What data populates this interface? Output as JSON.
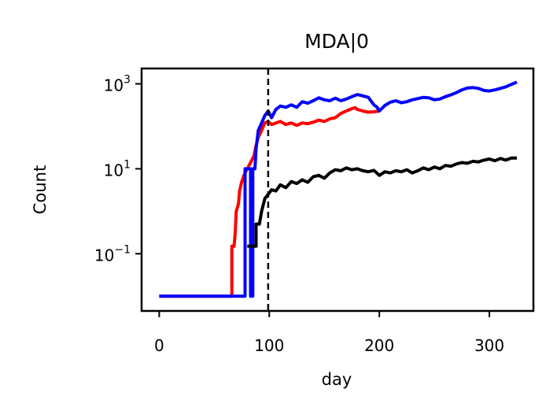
{
  "chart_data": {
    "type": "line",
    "title": "MDA|0",
    "xlabel": "day",
    "ylabel": "Count",
    "xlim": [
      -16,
      340
    ],
    "ylim": [
      0.0045,
      2300
    ],
    "yscale": "log",
    "x_ticks": [
      {
        "value": 0,
        "label": "0"
      },
      {
        "value": 100,
        "label": "100"
      },
      {
        "value": 200,
        "label": "200"
      },
      {
        "value": 300,
        "label": "300"
      }
    ],
    "y_ticks": [
      {
        "value": 0.1,
        "base": "10",
        "exponent": "−1"
      },
      {
        "value": 10,
        "base": "10",
        "exponent": "1"
      },
      {
        "value": 1000,
        "base": "10",
        "exponent": "3"
      }
    ],
    "vline": {
      "x": 99,
      "style": "dashed",
      "color": "#000000"
    },
    "grid": false,
    "series": [
      {
        "color": "#ff0000",
        "points": [
          [
            0,
            0.01
          ],
          [
            66,
            0.01
          ],
          [
            66,
            0.15
          ],
          [
            68,
            0.15
          ],
          [
            69,
            0.3
          ],
          [
            70,
            1.0
          ],
          [
            72,
            1.5
          ],
          [
            73,
            3.0
          ],
          [
            75,
            5.0
          ],
          [
            77,
            7.0
          ],
          [
            80,
            10
          ],
          [
            83,
            14
          ],
          [
            86,
            20
          ],
          [
            88,
            35
          ],
          [
            90,
            55
          ],
          [
            93,
            80
          ],
          [
            96,
            120
          ],
          [
            99,
            130
          ],
          [
            102,
            110
          ],
          [
            106,
            120
          ],
          [
            110,
            130
          ],
          [
            115,
            110
          ],
          [
            120,
            120
          ],
          [
            125,
            105
          ],
          [
            130,
            120
          ],
          [
            135,
            115
          ],
          [
            140,
            125
          ],
          [
            145,
            140
          ],
          [
            150,
            130
          ],
          [
            155,
            150
          ],
          [
            160,
            160
          ],
          [
            165,
            200
          ],
          [
            170,
            230
          ],
          [
            175,
            260
          ],
          [
            178,
            275
          ],
          [
            180,
            250
          ],
          [
            185,
            230
          ],
          [
            190,
            215
          ],
          [
            195,
            220
          ],
          [
            200,
            230
          ]
        ]
      },
      {
        "color": "#0000ff",
        "points": [
          [
            0,
            0.01
          ],
          [
            78,
            0.01
          ],
          [
            78,
            10
          ],
          [
            83,
            10
          ],
          [
            83,
            0.01
          ],
          [
            85,
            0.01
          ],
          [
            85,
            10
          ],
          [
            87,
            10
          ],
          [
            88,
            30
          ],
          [
            90,
            80
          ],
          [
            93,
            120
          ],
          [
            96,
            180
          ],
          [
            99,
            230
          ],
          [
            102,
            160
          ],
          [
            106,
            250
          ],
          [
            110,
            300
          ],
          [
            115,
            280
          ],
          [
            120,
            320
          ],
          [
            125,
            280
          ],
          [
            130,
            380
          ],
          [
            135,
            350
          ],
          [
            140,
            400
          ],
          [
            145,
            470
          ],
          [
            150,
            420
          ],
          [
            155,
            400
          ],
          [
            160,
            460
          ],
          [
            165,
            400
          ],
          [
            170,
            440
          ],
          [
            175,
            500
          ],
          [
            180,
            560
          ],
          [
            185,
            520
          ],
          [
            190,
            480
          ],
          [
            195,
            320
          ],
          [
            198,
            280
          ],
          [
            200,
            230
          ],
          [
            205,
            310
          ],
          [
            210,
            370
          ],
          [
            215,
            400
          ],
          [
            220,
            360
          ],
          [
            225,
            380
          ],
          [
            230,
            420
          ],
          [
            235,
            450
          ],
          [
            240,
            480
          ],
          [
            245,
            470
          ],
          [
            250,
            420
          ],
          [
            255,
            440
          ],
          [
            260,
            500
          ],
          [
            265,
            550
          ],
          [
            270,
            620
          ],
          [
            275,
            720
          ],
          [
            280,
            800
          ],
          [
            285,
            820
          ],
          [
            290,
            780
          ],
          [
            295,
            700
          ],
          [
            300,
            680
          ],
          [
            305,
            720
          ],
          [
            310,
            780
          ],
          [
            315,
            850
          ],
          [
            320,
            970
          ],
          [
            325,
            1100
          ]
        ]
      },
      {
        "color": "#000000",
        "points": [
          [
            80,
            0.15
          ],
          [
            88,
            0.15
          ],
          [
            88,
            0.5
          ],
          [
            91,
            0.5
          ],
          [
            93,
            1.0
          ],
          [
            96,
            2.0
          ],
          [
            99,
            2.5
          ],
          [
            102,
            3.2
          ],
          [
            106,
            3.0
          ],
          [
            110,
            4.2
          ],
          [
            115,
            3.6
          ],
          [
            120,
            5.0
          ],
          [
            125,
            4.5
          ],
          [
            130,
            5.5
          ],
          [
            135,
            4.8
          ],
          [
            140,
            6.5
          ],
          [
            145,
            7.0
          ],
          [
            150,
            6.0
          ],
          [
            155,
            8.0
          ],
          [
            160,
            9.5
          ],
          [
            165,
            9.0
          ],
          [
            170,
            10.5
          ],
          [
            175,
            9.5
          ],
          [
            180,
            10.0
          ],
          [
            185,
            9.0
          ],
          [
            190,
            8.5
          ],
          [
            195,
            9.2
          ],
          [
            200,
            7.0
          ],
          [
            205,
            8.5
          ],
          [
            210,
            8.0
          ],
          [
            215,
            9.0
          ],
          [
            220,
            8.5
          ],
          [
            225,
            9.5
          ],
          [
            230,
            8.0
          ],
          [
            235,
            9.0
          ],
          [
            240,
            10.5
          ],
          [
            245,
            9.5
          ],
          [
            250,
            11.0
          ],
          [
            255,
            10.0
          ],
          [
            260,
            12.0
          ],
          [
            265,
            11.5
          ],
          [
            270,
            13.0
          ],
          [
            275,
            14.0
          ],
          [
            280,
            13.5
          ],
          [
            285,
            15.0
          ],
          [
            290,
            14.5
          ],
          [
            295,
            16.0
          ],
          [
            300,
            17.0
          ],
          [
            305,
            15.5
          ],
          [
            310,
            17.5
          ],
          [
            315,
            16.0
          ],
          [
            320,
            18.0
          ],
          [
            325,
            18.0
          ]
        ]
      }
    ]
  }
}
